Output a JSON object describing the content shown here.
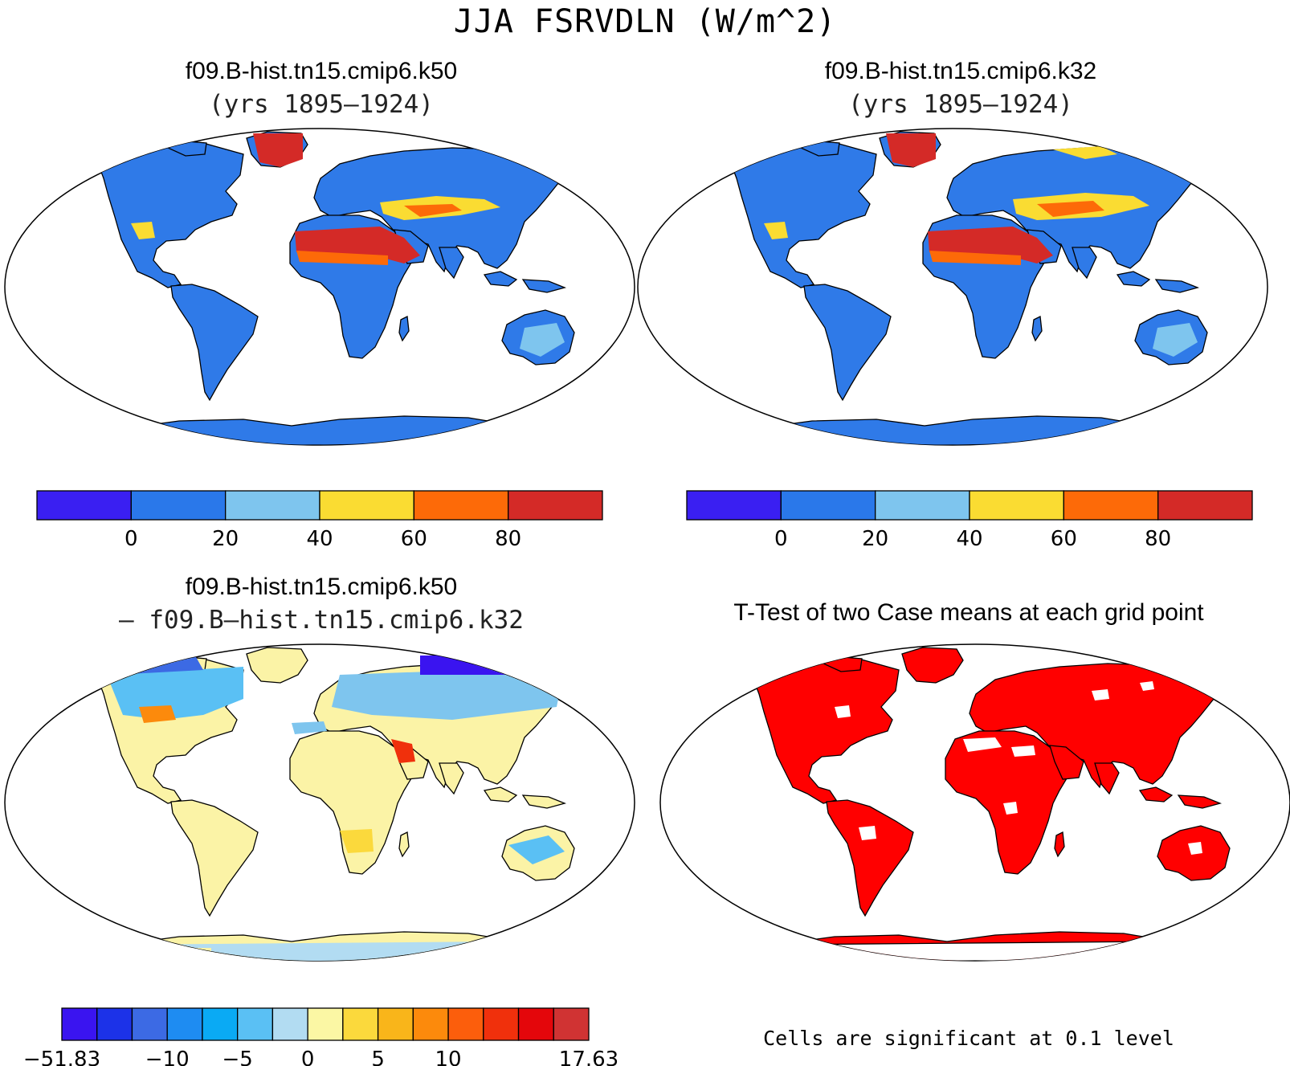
{
  "title": "JJA FSRVDLN (W/m^2)",
  "panels": [
    {
      "id": "case1",
      "title": "f09.B-hist.tn15.cmip6.k50",
      "subtitle": "(yrs 1895–1924)"
    },
    {
      "id": "case2",
      "title": "f09.B-hist.tn15.cmip6.k32",
      "subtitle": "(yrs 1895–1924)"
    },
    {
      "id": "diff",
      "title": "f09.B-hist.tn15.cmip6.k50",
      "subtitle": "– f09.B–hist.tn15.cmip6.k32"
    },
    {
      "id": "ttest",
      "title": "T-Test of two Case means at each grid point",
      "subtitle": ""
    }
  ],
  "colorbar_main": {
    "colors": [
      "#3a1ff2",
      "#2a78ea",
      "#7ec5ee",
      "#fadc32",
      "#fd6a08",
      "#d42a27"
    ],
    "labels": [
      "0",
      "20",
      "40",
      "60",
      "80"
    ]
  },
  "colorbar_diff": {
    "colors": [
      "#3a14f0",
      "#1c32e8",
      "#3c6ae4",
      "#1e8cf2",
      "#0aaaf4",
      "#5ac0f4",
      "#b2dcf2",
      "#fbf7a4",
      "#fbd93c",
      "#f9b51a",
      "#fc8a0c",
      "#fc5e0c",
      "#f0300c",
      "#e4060b",
      "#d03333"
    ],
    "labels": [
      "−51.83",
      "−10",
      "−5",
      "0",
      "5",
      "10",
      "17.63"
    ]
  },
  "ttest_note": "Cells are significant at 0.1 level",
  "colors": {
    "land_main": "#2f7ae8",
    "hot": "#d42a27",
    "diff_land": "#fbf3a6",
    "significant": "#ff0000"
  }
}
